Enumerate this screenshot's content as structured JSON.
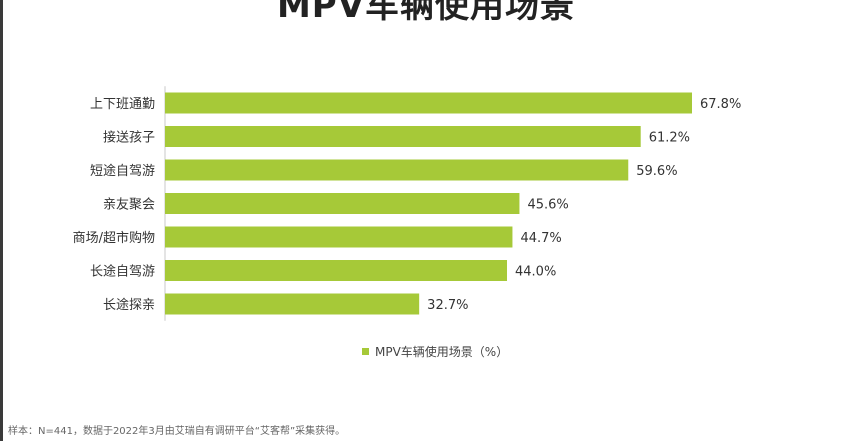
{
  "colors": {
    "bar": "#a6c938",
    "text": "#333333",
    "axis": "#c8c8c8"
  },
  "chart_data": {
    "type": "bar",
    "orientation": "horizontal",
    "title": "MPV车辆使用场景",
    "categories": [
      "上下班通勤",
      "接送孩子",
      "短途自驾游",
      "亲友聚会",
      "商场/超市购物",
      "长途自驾游",
      "长途探亲"
    ],
    "series": [
      {
        "name": "MPV车辆使用场景（%）",
        "values": [
          67.8,
          61.2,
          59.6,
          45.6,
          44.7,
          44.0,
          32.7
        ],
        "labels": [
          "67.8%",
          "61.2%",
          "59.6%",
          "45.6%",
          "44.7%",
          "44.0%",
          "32.7%"
        ]
      }
    ],
    "xlim": [
      0,
      67.8
    ],
    "grid": false,
    "legend_position": "bottom"
  },
  "note": "样本：N=441，数据于2022年3月由艾瑞自有调研平台“艾客帮”采集获得。"
}
